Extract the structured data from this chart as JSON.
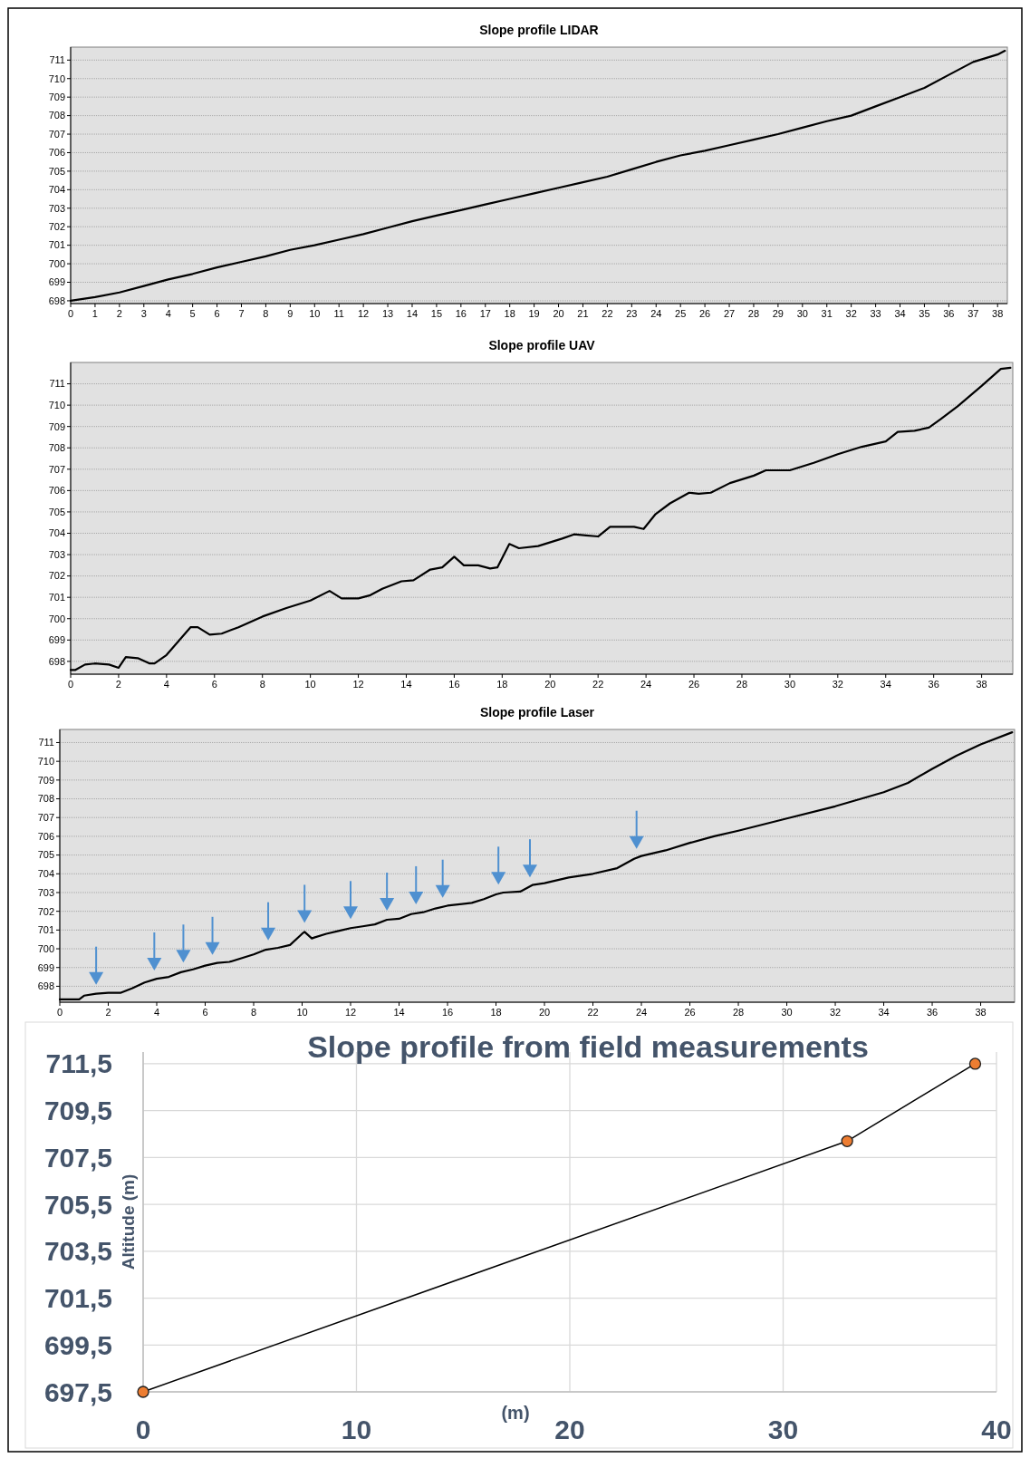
{
  "chart_data": [
    {
      "type": "line",
      "title": "Slope profile LIDAR",
      "xlim": [
        0,
        38.4
      ],
      "ylim": [
        697.85,
        711.7
      ],
      "xticks": [
        0,
        1,
        2,
        3,
        4,
        5,
        6,
        7,
        8,
        9,
        10,
        11,
        12,
        13,
        14,
        15,
        16,
        17,
        18,
        19,
        20,
        21,
        22,
        23,
        24,
        25,
        26,
        27,
        28,
        29,
        30,
        31,
        32,
        33,
        34,
        35,
        36,
        37,
        38
      ],
      "yticks": [
        698,
        699,
        700,
        701,
        702,
        703,
        704,
        705,
        706,
        707,
        708,
        709,
        710,
        711
      ],
      "grid": "y",
      "series": [
        {
          "color": "#000000",
          "x": [
            0,
            1,
            2,
            3,
            4,
            5,
            6,
            7,
            8,
            9,
            10,
            11,
            12,
            13,
            14,
            15,
            16,
            17,
            18,
            19,
            20,
            21,
            22,
            23,
            24,
            25,
            26,
            27,
            28,
            29,
            30,
            31,
            32,
            33,
            34,
            35,
            36,
            37,
            38,
            38.3
          ],
          "values": [
            698.0,
            698.2,
            698.45,
            698.8,
            699.15,
            699.45,
            699.8,
            700.1,
            700.4,
            700.75,
            701.0,
            701.3,
            701.6,
            701.95,
            702.3,
            702.6,
            702.9,
            703.2,
            703.5,
            703.8,
            704.1,
            704.4,
            704.7,
            705.1,
            705.5,
            705.85,
            706.1,
            706.4,
            706.7,
            707.0,
            707.35,
            707.7,
            708.0,
            708.5,
            709.0,
            709.5,
            710.2,
            710.9,
            711.3,
            711.5
          ]
        }
      ]
    },
    {
      "type": "line",
      "title": "Slope profile UAV",
      "xlim": [
        0,
        39.3
      ],
      "ylim": [
        697.4,
        712
      ],
      "xticks": [
        0,
        2,
        4,
        6,
        8,
        10,
        12,
        14,
        16,
        18,
        20,
        22,
        24,
        26,
        28,
        30,
        32,
        34,
        36,
        38
      ],
      "yticks": [
        698,
        699,
        700,
        701,
        702,
        703,
        704,
        705,
        706,
        707,
        708,
        709,
        710,
        711
      ],
      "grid": "y",
      "series": [
        {
          "color": "#000000",
          "x": [
            0,
            0.2,
            0.6,
            1,
            1.6,
            2,
            2.3,
            2.8,
            3.3,
            3.5,
            4,
            5,
            5.3,
            5.8,
            6.3,
            7,
            8,
            9,
            10,
            10.8,
            11.3,
            12,
            12.5,
            13,
            13.8,
            14.3,
            15,
            15.5,
            16,
            16.4,
            17,
            17.5,
            17.8,
            18.3,
            18.7,
            19.5,
            20.5,
            21,
            21.5,
            22,
            22.5,
            23.5,
            23.9,
            24.4,
            25,
            25.8,
            26.2,
            26.7,
            27.5,
            28.5,
            29,
            30,
            31,
            32,
            33,
            34,
            34.5,
            35.2,
            35.8,
            36.3,
            37,
            38,
            38.8,
            39.2
          ],
          "values": [
            697.6,
            697.6,
            697.85,
            697.9,
            697.85,
            697.7,
            698.2,
            698.15,
            697.9,
            697.9,
            698.3,
            699.6,
            699.6,
            699.25,
            699.3,
            699.6,
            700.1,
            700.5,
            700.85,
            701.3,
            700.95,
            700.95,
            701.1,
            701.4,
            701.75,
            701.8,
            702.3,
            702.4,
            702.9,
            702.5,
            702.5,
            702.35,
            702.4,
            703.5,
            703.3,
            703.4,
            703.75,
            703.95,
            703.9,
            703.85,
            704.3,
            704.3,
            704.2,
            704.9,
            705.4,
            705.9,
            705.85,
            705.9,
            706.35,
            706.7,
            706.95,
            706.95,
            707.3,
            707.7,
            708.05,
            708.3,
            708.75,
            708.8,
            708.95,
            709.35,
            709.95,
            710.9,
            711.7,
            711.75
          ]
        }
      ]
    },
    {
      "type": "line",
      "title": "Slope profile Laser",
      "xlim": [
        0,
        39.4
      ],
      "ylim": [
        697.15,
        711.7
      ],
      "xticks": [
        0,
        2,
        4,
        6,
        8,
        10,
        12,
        14,
        16,
        18,
        20,
        22,
        24,
        26,
        28,
        30,
        32,
        34,
        36,
        38
      ],
      "yticks": [
        698,
        699,
        700,
        701,
        702,
        703,
        704,
        705,
        706,
        707,
        708,
        709,
        710,
        711
      ],
      "grid": "y",
      "series": [
        {
          "color": "#000000",
          "x": [
            0,
            0.8,
            1,
            1.5,
            2,
            2.5,
            3,
            3.5,
            4,
            4.5,
            5,
            5.5,
            6,
            6.5,
            7,
            8,
            8.5,
            9,
            9.5,
            10,
            10.1,
            10.4,
            10.5,
            11,
            11.5,
            12,
            12.5,
            13,
            13.5,
            14,
            14.5,
            15,
            15.5,
            16,
            17,
            17.5,
            18,
            18.3,
            19,
            19.5,
            20,
            21,
            22,
            23,
            23.7,
            24,
            25,
            26,
            27,
            28,
            30,
            32,
            34,
            35,
            36,
            37,
            38,
            39.3
          ],
          "values": [
            697.3,
            697.3,
            697.5,
            697.6,
            697.65,
            697.65,
            697.9,
            698.2,
            698.4,
            698.5,
            698.75,
            698.9,
            699.1,
            699.25,
            699.3,
            699.7,
            699.95,
            700.05,
            700.2,
            700.8,
            700.9,
            700.55,
            700.6,
            700.8,
            700.95,
            701.1,
            701.2,
            701.3,
            701.55,
            701.6,
            701.85,
            701.95,
            702.15,
            702.3,
            702.45,
            702.65,
            702.9,
            703.0,
            703.05,
            703.4,
            703.5,
            703.8,
            704.0,
            704.3,
            704.8,
            704.95,
            705.25,
            705.65,
            706.0,
            706.3,
            706.95,
            707.6,
            708.35,
            708.85,
            709.6,
            710.3,
            710.9,
            711.55
          ]
        }
      ]
    },
    {
      "type": "line",
      "title": "Slope profile from field measurements",
      "xlabel": "(m)",
      "ylabel": "Altitude (m)",
      "xlim": [
        0,
        40
      ],
      "ylim": [
        697.5,
        712
      ],
      "xticks": [
        0,
        10,
        20,
        30,
        40
      ],
      "yticks": [
        {
          "value": 697.5,
          "label": "697,5"
        },
        {
          "value": 699.5,
          "label": "699,5"
        },
        {
          "value": 701.5,
          "label": "701,5"
        },
        {
          "value": 703.5,
          "label": "703,5"
        },
        {
          "value": 705.5,
          "label": "705,5"
        },
        {
          "value": 707.5,
          "label": "707,5"
        },
        {
          "value": 709.5,
          "label": "709,5"
        },
        {
          "value": 711.5,
          "label": "711,5"
        }
      ],
      "grid": true,
      "marker": "circle",
      "series": [
        {
          "color": "#000000",
          "x": [
            0,
            33,
            39
          ],
          "values": [
            697.5,
            708.2,
            711.5
          ]
        }
      ]
    }
  ]
}
